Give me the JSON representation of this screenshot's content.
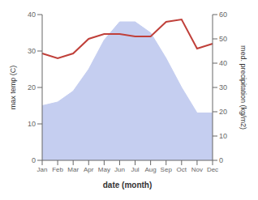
{
  "chart_data": {
    "type": "area",
    "xlabel": "date (month)",
    "ylabel": "max temp (C)",
    "y2label": "med. precipitation (kg/m2)",
    "categories": [
      "Jan",
      "Feb",
      "Mar",
      "Apr",
      "May",
      "Jun",
      "Jul",
      "Aug",
      "Sep",
      "Oct",
      "Nov",
      "Dec"
    ],
    "series": [
      {
        "type": "area",
        "color": "#c5cef0",
        "values": [
          15,
          16,
          19,
          25,
          33,
          38,
          38,
          35,
          28,
          20,
          13,
          13
        ]
      },
      {
        "type": "line",
        "color": "#c0403a",
        "axis": "y2",
        "values": [
          44,
          42,
          44,
          50,
          52,
          52,
          51,
          51,
          57,
          58,
          46,
          48
        ]
      }
    ],
    "ylim": [
      0,
      40
    ],
    "yticks": [
      0,
      10,
      20,
      30,
      40
    ],
    "y2lim": [
      0,
      60
    ],
    "y2ticks": [
      0,
      10,
      20,
      30,
      40,
      50,
      60
    ]
  }
}
